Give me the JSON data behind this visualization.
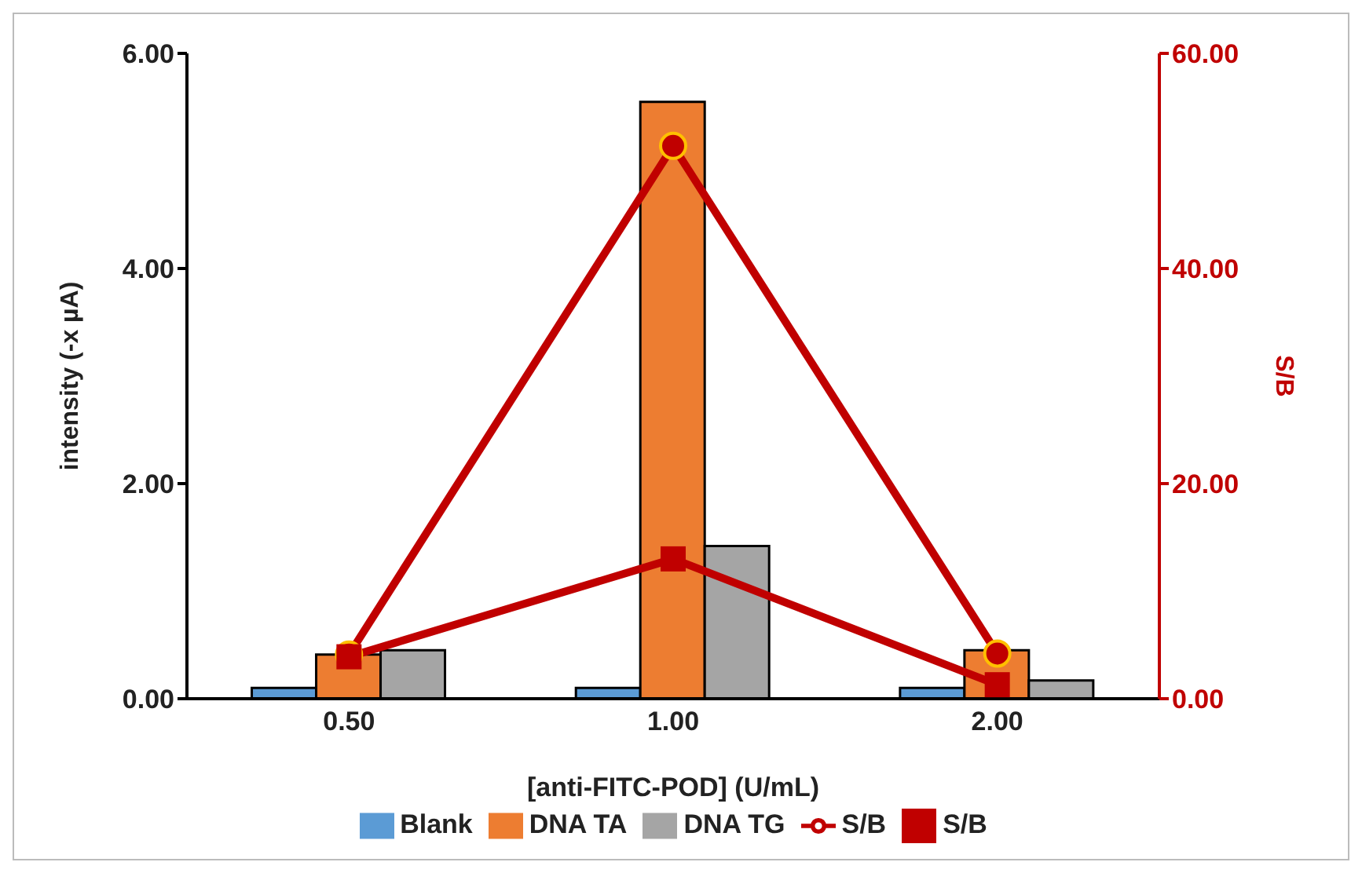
{
  "chart_data": {
    "type": "bar",
    "xlabel": "[anti-FITC-POD] (U/mL)",
    "ylabel": "intensity (-x µA)",
    "y2label": "S/B",
    "categories": [
      "0.50",
      "1.00",
      "2.00"
    ],
    "series": [
      {
        "name": "Blank",
        "color": "#5b9bd5",
        "values": [
          0.1,
          0.1,
          0.1
        ]
      },
      {
        "name": "DNA TA",
        "color": "#ed7d31",
        "values": [
          0.41,
          5.55,
          0.45
        ]
      },
      {
        "name": "DNA TG",
        "color": "#a5a5a5",
        "values": [
          0.45,
          1.42,
          0.17
        ]
      },
      {
        "name": "S/B",
        "type": "line",
        "axis": "y2",
        "color": "#c00000",
        "marker": "circle",
        "values": [
          4.1,
          51.4,
          4.2
        ]
      },
      {
        "name": "S/B",
        "type": "line",
        "axis": "y2",
        "color": "#c00000",
        "marker": "square",
        "values": [
          3.9,
          13.0,
          1.3
        ]
      }
    ],
    "ylim": [
      0,
      6
    ],
    "yticks": [
      {
        "value": 0,
        "label": "0.00"
      },
      {
        "value": 2,
        "label": "2.00"
      },
      {
        "value": 4,
        "label": "4.00"
      },
      {
        "value": 6,
        "label": "6.00"
      }
    ],
    "y2lim": [
      0,
      60
    ],
    "y2ticks": [
      {
        "value": 0,
        "label": "0.00"
      },
      {
        "value": 20,
        "label": "20.00"
      },
      {
        "value": 40,
        "label": "40.00"
      },
      {
        "value": 60,
        "label": "60.00"
      }
    ],
    "grid": false,
    "legend": "bottom"
  }
}
